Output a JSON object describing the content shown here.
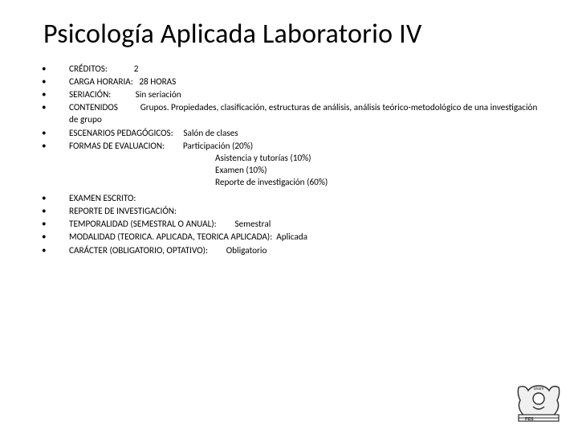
{
  "title": "Psicología Aplicada Laboratorio IV",
  "colors": {
    "text": "#000000",
    "background": "#ffffff",
    "logo_stroke": "#2b2b2b",
    "logo_fill": "#e0e0e0"
  },
  "fonts": {
    "title_family": "Calibri",
    "title_size_pt": 34,
    "body_family": "Arial",
    "body_size_pt": 11
  },
  "items": [
    {
      "label": "CRÉDITOS:",
      "value": "2",
      "pad": 13
    },
    {
      "label": "CARGA HORARIA:",
      "value": "28 HORAS",
      "pad": 3
    },
    {
      "label": "SERIACIÓN:",
      "value": "Sin seriación",
      "pad": 12
    },
    {
      "label": "CONTENIDOS",
      "value": "Grupos. Propiedades, clasificación, estructuras de análisis, análisis teórico-metodológico de una investigación de grupo",
      "pad": 11,
      "wrap": true
    },
    {
      "label": "ESCENARIOS PEDAGÓGICOS:",
      "value": "Salón de clases",
      "pad": 5
    },
    {
      "label": "FORMAS DE EVALUACION:",
      "value": "Participación (20%)",
      "pad": 9,
      "sublines": [
        "Asistencia y tutorías (10%)",
        "Examen (10%)",
        "Reporte de investigación (60%)"
      ]
    },
    {
      "label": "EXAMEN ESCRITO:",
      "value": "",
      "pad": 0,
      "section_break": true
    },
    {
      "label": "REPORTE DE INVESTIGACIÓN:",
      "value": "",
      "pad": 0
    },
    {
      "label": "TEMPORALIDAD (SEMESTRAL O ANUAL):",
      "value": "Semestral",
      "pad": 9
    },
    {
      "label": "MODALIDAD (TEORICA. APLICADA, TEORICA APLICADA):",
      "value": "Aplicada",
      "pad": 2
    },
    {
      "label": "CARÁCTER (OBLIGATORIO, OPTATIVO):",
      "value": "Obligatorio",
      "pad": 9
    }
  ],
  "logo": {
    "name": "unam-fesi-logo",
    "stroke": "#2b2b2b",
    "fill": "#f2f2f2"
  }
}
